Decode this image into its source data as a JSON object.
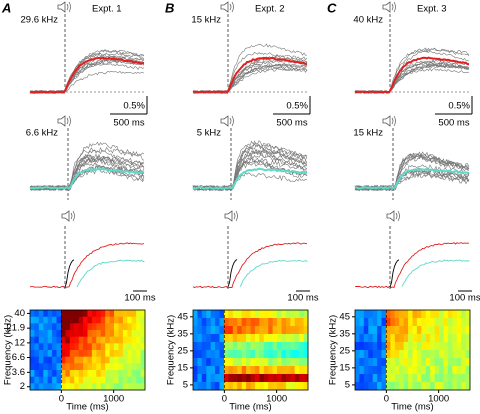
{
  "panels": [
    {
      "letter": "A",
      "experiment": "Expt. 1",
      "freq_top": "29.6 kHz",
      "freq_mid": "6.6 kHz",
      "scale_y": "0.5%",
      "scale_x": "500 ms",
      "scale_x_small": "100 ms",
      "heatmap": {
        "ylabel": "Frequency (kHz)",
        "xlabel": "Time (ms)",
        "log_scale": true,
        "ylim": [
          1.75,
          46
        ],
        "yticks": [
          2,
          3.6,
          6.6,
          12,
          21.9,
          40
        ],
        "xlim": [
          -600,
          1600
        ],
        "xticks": [
          0,
          1000
        ]
      }
    },
    {
      "letter": "B",
      "experiment": "Expt. 2",
      "freq_top": "15 kHz",
      "freq_mid": "5 kHz",
      "scale_y": "0.5%",
      "scale_x": "500 ms",
      "scale_x_small": "100 ms",
      "heatmap": {
        "ylabel": "Frequency (kHz)",
        "xlabel": "Time (ms)",
        "log_scale": false,
        "ylim": [
          2,
          49
        ],
        "yticks": [
          5,
          15,
          25,
          35,
          45
        ],
        "xlim": [
          -600,
          1600
        ],
        "xticks": [
          0,
          1000
        ]
      }
    },
    {
      "letter": "C",
      "experiment": "Expt. 3",
      "freq_top": "40 kHz",
      "freq_mid": "15 kHz",
      "scale_y": "0.5%",
      "scale_x": "500 ms",
      "scale_x_small": "100 ms",
      "heatmap": {
        "ylabel": "Frequency (kHz)",
        "xlabel": "Time (ms)",
        "log_scale": false,
        "ylim": [
          2,
          49
        ],
        "yticks": [
          5,
          15,
          25,
          35,
          45
        ],
        "xlim": [
          -600,
          1600
        ],
        "xticks": [
          0,
          1000
        ]
      }
    }
  ]
}
